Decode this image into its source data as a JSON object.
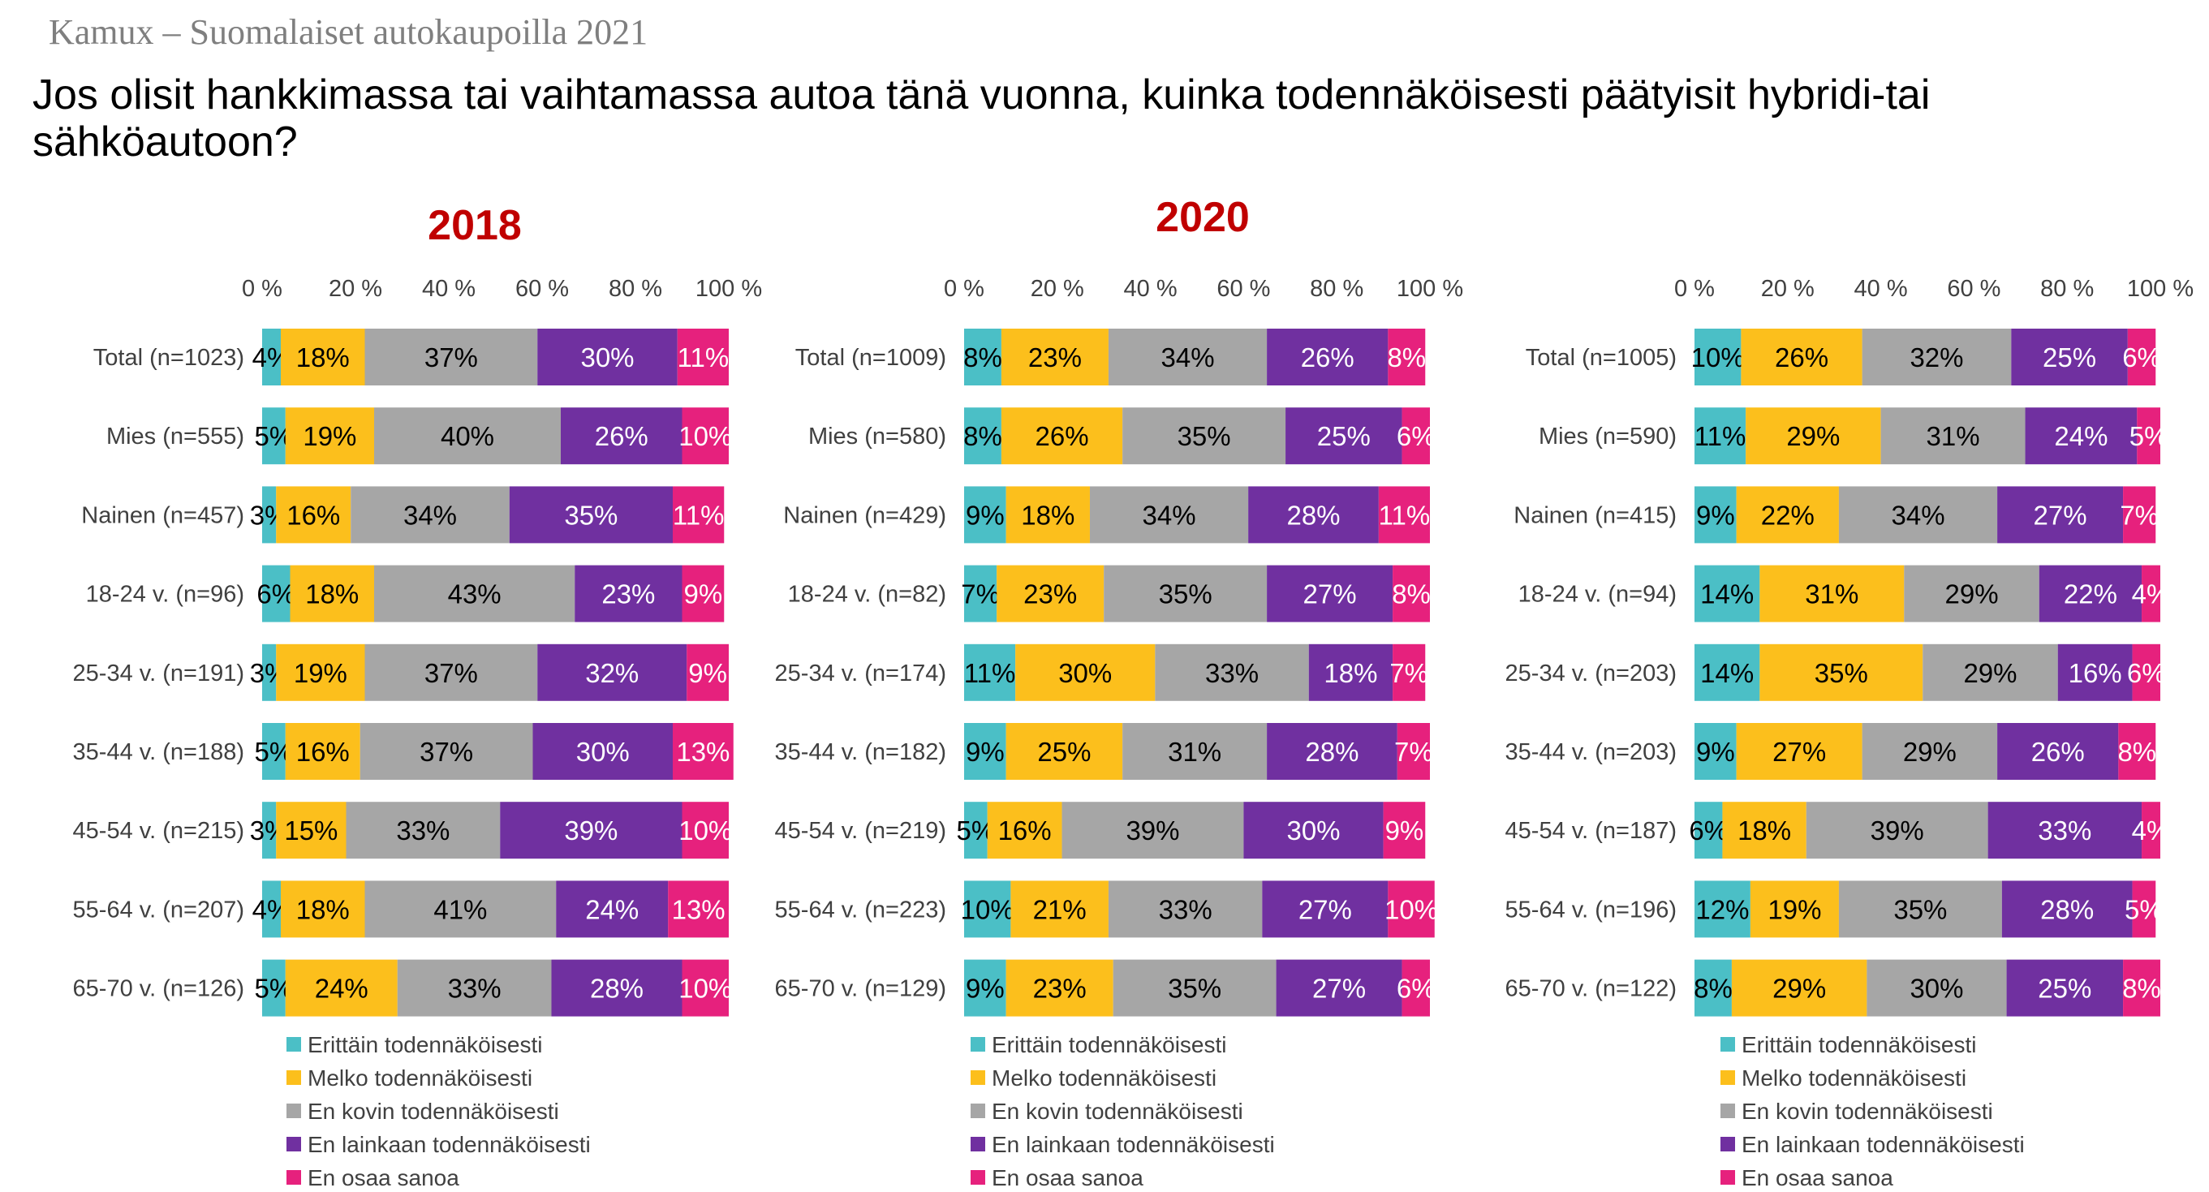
{
  "header": {
    "brand": "Kamux – Suomalaiset autokaupoilla 2021",
    "question": "Jos olisit hankkimassa tai vaihtamassa autoa tänä vuonna, kuinka todennäköisesti päätyisit hybridi-tai sähköautoon?"
  },
  "colors": {
    "series": [
      "#4bbfc6",
      "#fcbf1c",
      "#a6a6a6",
      "#7030a0",
      "#e6217d"
    ],
    "year_title": "#c00000"
  },
  "chart_data": [
    {
      "type": "bar",
      "orientation": "horizontal",
      "stacked": true,
      "title": "2018",
      "xlim": [
        0,
        100
      ],
      "x_ticks": [
        "0 %",
        "20 %",
        "40 %",
        "60 %",
        "80 %",
        "100 %"
      ],
      "legend_position": "bottom",
      "categories": [
        "Total (n=1023)",
        "Mies (n=555)",
        "Nainen (n=457)",
        "18-24 v. (n=96)",
        "25-34 v. (n=191)",
        "35-44 v. (n=188)",
        "45-54 v. (n=215)",
        "55-64 v. (n=207)",
        "65-70 v. (n=126)"
      ],
      "series": [
        {
          "name": "Erittäin todennäköisesti",
          "values": [
            4,
            5,
            3,
            6,
            3,
            5,
            3,
            4,
            5
          ]
        },
        {
          "name": "Melko todennäköisesti",
          "values": [
            18,
            19,
            16,
            18,
            19,
            16,
            15,
            18,
            24
          ]
        },
        {
          "name": "En kovin todennäköisesti",
          "values": [
            37,
            40,
            34,
            43,
            37,
            37,
            33,
            41,
            33
          ]
        },
        {
          "name": "En lainkaan todennäköisesti",
          "values": [
            30,
            26,
            35,
            23,
            32,
            30,
            39,
            24,
            28
          ]
        },
        {
          "name": "En osaa sanoa",
          "values": [
            11,
            10,
            11,
            9,
            9,
            13,
            10,
            13,
            10
          ]
        }
      ]
    },
    {
      "type": "bar",
      "orientation": "horizontal",
      "stacked": true,
      "title": "2020",
      "xlim": [
        0,
        100
      ],
      "x_ticks": [
        "0 %",
        "20 %",
        "40 %",
        "60 %",
        "80 %",
        "100 %"
      ],
      "legend_position": "bottom",
      "categories": [
        "Total (n=1009)",
        "Mies (n=580)",
        "Nainen (n=429)",
        "18-24 v. (n=82)",
        "25-34 v. (n=174)",
        "35-44 v. (n=182)",
        "45-54 v. (n=219)",
        "55-64 v. (n=223)",
        "65-70 v. (n=129)"
      ],
      "series": [
        {
          "name": "Erittäin todennäköisesti",
          "values": [
            8,
            8,
            9,
            7,
            11,
            9,
            5,
            10,
            9
          ]
        },
        {
          "name": "Melko todennäköisesti",
          "values": [
            23,
            26,
            18,
            23,
            30,
            25,
            16,
            21,
            23
          ]
        },
        {
          "name": "En kovin todennäköisesti",
          "values": [
            34,
            35,
            34,
            35,
            33,
            31,
            39,
            33,
            35
          ]
        },
        {
          "name": "En lainkaan todennäköisesti",
          "values": [
            26,
            25,
            28,
            27,
            18,
            28,
            30,
            27,
            27
          ]
        },
        {
          "name": "En osaa sanoa",
          "values": [
            8,
            6,
            11,
            8,
            7,
            7,
            9,
            10,
            6
          ]
        }
      ]
    },
    {
      "type": "bar",
      "orientation": "horizontal",
      "stacked": true,
      "title": "",
      "xlim": [
        0,
        100
      ],
      "x_ticks": [
        "0 %",
        "20 %",
        "40 %",
        "60 %",
        "80 %",
        "100 %"
      ],
      "legend_position": "bottom",
      "categories": [
        "Total (n=1005)",
        "Mies (n=590)",
        "Nainen (n=415)",
        "18-24 v. (n=94)",
        "25-34 v. (n=203)",
        "35-44 v. (n=203)",
        "45-54 v. (n=187)",
        "55-64 v. (n=196)",
        "65-70 v. (n=122)"
      ],
      "series": [
        {
          "name": "Erittäin todennäköisesti",
          "values": [
            10,
            11,
            9,
            14,
            14,
            9,
            6,
            12,
            8
          ]
        },
        {
          "name": "Melko todennäköisesti",
          "values": [
            26,
            29,
            22,
            31,
            35,
            27,
            18,
            19,
            29
          ]
        },
        {
          "name": "En kovin todennäköisesti",
          "values": [
            32,
            31,
            34,
            29,
            29,
            29,
            39,
            35,
            30
          ]
        },
        {
          "name": "En lainkaan todennäköisesti",
          "values": [
            25,
            24,
            27,
            22,
            16,
            26,
            33,
            28,
            25
          ]
        },
        {
          "name": "En osaa sanoa",
          "values": [
            6,
            5,
            7,
            4,
            6,
            8,
            4,
            5,
            8
          ]
        }
      ]
    }
  ]
}
